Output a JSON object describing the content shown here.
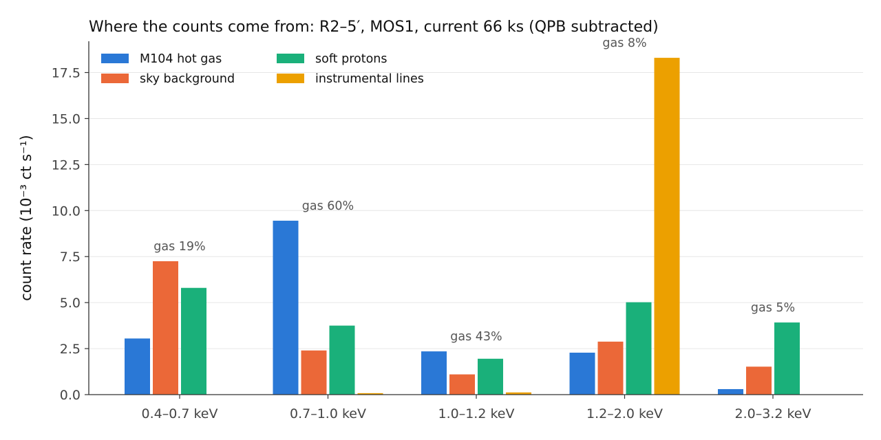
{
  "chart_data": {
    "type": "bar",
    "title": "Where the counts come from: R2–5′, MOS1, current 66 ks (QPB subtracted)",
    "ylabel": "count rate (10⁻³ ct s⁻¹)",
    "xlabel": "",
    "ylim": [
      0,
      19.2
    ],
    "yticks": [
      "0.0",
      "2.5",
      "5.0",
      "7.5",
      "10.0",
      "12.5",
      "15.0",
      "17.5"
    ],
    "ytick_values": [
      0,
      2.5,
      5.0,
      7.5,
      10.0,
      12.5,
      15.0,
      17.5
    ],
    "grid": "y",
    "legend_position": "top-left",
    "categories": [
      "0.4–0.7 keV",
      "0.7–1.0 keV",
      "1.0–1.2 keV",
      "1.2–2.0 keV",
      "2.0–3.2 keV"
    ],
    "series": [
      {
        "name": "M104 hot gas",
        "color": "#2a78d6",
        "values": [
          3.05,
          9.45,
          2.35,
          2.28,
          0.3
        ]
      },
      {
        "name": "sky background",
        "color": "#eb6838",
        "values": [
          7.25,
          2.4,
          1.1,
          2.88,
          1.52
        ]
      },
      {
        "name": "soft protons",
        "color": "#1ab07a",
        "values": [
          5.8,
          3.75,
          1.95,
          5.02,
          3.92
        ]
      },
      {
        "name": "instrumental lines",
        "color": "#eca000",
        "values": [
          0.0,
          0.08,
          0.12,
          18.3,
          0.0
        ]
      }
    ],
    "annotations": [
      "gas 19%",
      "gas 60%",
      "gas 43%",
      "gas 8%",
      "gas 5%"
    ]
  }
}
